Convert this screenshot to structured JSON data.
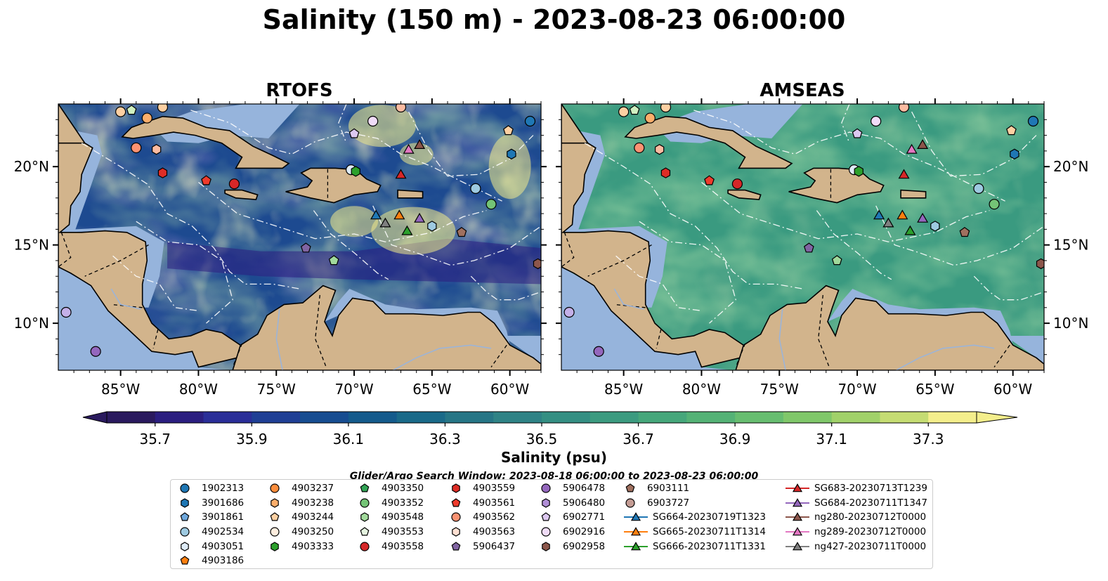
{
  "title": "Salinity (150 m) - 2023-08-23 06:00:00",
  "panels": [
    {
      "title": "RTOFS",
      "scheme": "rtofs"
    },
    {
      "title": "AMSEAS",
      "scheme": "amseas"
    }
  ],
  "map": {
    "lon_range": [
      -89,
      -58
    ],
    "lat_range": [
      7,
      24
    ],
    "lon_ticks": [
      "85°W",
      "80°W",
      "75°W",
      "70°W",
      "65°W",
      "60°W"
    ],
    "lat_ticks": [
      "20°N",
      "15°N",
      "10°N"
    ],
    "land_color": "#d2b48c",
    "shelf_color": "#96b4dc"
  },
  "colorbar": {
    "label": "Salinity (psu)",
    "range": [
      35.6,
      37.4
    ],
    "tick_values": [
      35.7,
      35.9,
      36.1,
      36.3,
      36.5,
      36.7,
      36.9,
      37.1,
      37.3
    ],
    "tick_labels": [
      "35.7",
      "35.9",
      "36.1",
      "36.3",
      "36.5",
      "36.7",
      "36.9",
      "37.1",
      "37.3"
    ],
    "levels": 18,
    "extend": "both"
  },
  "search_window": "Glider/Argo Search Window: 2023-08-18 06:00:00 to 2023-08-23 06:00:00",
  "legend_columns": [
    [
      {
        "label": "1902313",
        "marker": "circle",
        "color": "#1f77b4"
      },
      {
        "label": "3901686",
        "marker": "hexagon",
        "color": "#1f77b4"
      },
      {
        "label": "3901861",
        "marker": "pentagon",
        "color": "#6fa8dc"
      },
      {
        "label": "4902534",
        "marker": "circle",
        "color": "#9ecae1"
      },
      {
        "label": "4903051",
        "marker": "hexagon",
        "color": "#deebf7"
      },
      {
        "label": "4903186",
        "marker": "pentagon",
        "color": "#ff7f0e"
      }
    ],
    [
      {
        "label": "4903237",
        "marker": "circle",
        "color": "#fd8d3c"
      },
      {
        "label": "4903238",
        "marker": "hexagon",
        "color": "#fdae6b"
      },
      {
        "label": "4903244",
        "marker": "pentagon",
        "color": "#fdd0a2"
      },
      {
        "label": "4903250",
        "marker": "circle",
        "color": "#feedde"
      },
      {
        "label": "4903333",
        "marker": "hexagon",
        "color": "#2ca02c"
      }
    ],
    [
      {
        "label": "4903350",
        "marker": "pentagon",
        "color": "#31a354"
      },
      {
        "label": "4903352",
        "marker": "circle",
        "color": "#74c476"
      },
      {
        "label": "4903548",
        "marker": "hexagon",
        "color": "#a1d99b"
      },
      {
        "label": "4903553",
        "marker": "pentagon",
        "color": "#e5f5e0"
      },
      {
        "label": "4903558",
        "marker": "circle",
        "color": "#d62728"
      }
    ],
    [
      {
        "label": "4903559",
        "marker": "hexagon",
        "color": "#de2d26"
      },
      {
        "label": "4903561",
        "marker": "pentagon",
        "color": "#ef3b2c"
      },
      {
        "label": "4903562",
        "marker": "circle",
        "color": "#fc9272"
      },
      {
        "label": "4903563",
        "marker": "hexagon",
        "color": "#fee0d2"
      },
      {
        "label": "5906437",
        "marker": "pentagon",
        "color": "#8064a2"
      }
    ],
    [
      {
        "label": "5906478",
        "marker": "circle",
        "color": "#9467bd"
      },
      {
        "label": "5906480",
        "marker": "hexagon",
        "color": "#b08ed6"
      },
      {
        "label": "6902771",
        "marker": "pentagon",
        "color": "#dcc8f0"
      },
      {
        "label": "6902916",
        "marker": "circle",
        "color": "#f0dcf8"
      },
      {
        "label": "6902958",
        "marker": "hexagon",
        "color": "#8c564b"
      }
    ],
    [
      {
        "label": "6903111",
        "marker": "pentagon",
        "color": "#a0705f"
      },
      {
        "label": "6903727",
        "marker": "circle",
        "color": "#c49c94"
      },
      {
        "label": "SG664-20230719T1323",
        "marker": "triangle",
        "color": "#1f77b4",
        "line": true
      },
      {
        "label": "SG665-20230711T1314",
        "marker": "triangle",
        "color": "#ff7f0e",
        "line": true
      },
      {
        "label": "SG666-20230711T1331",
        "marker": "triangle",
        "color": "#2ca02c",
        "line": true
      }
    ],
    [
      {
        "label": "SG683-20230713T1239",
        "marker": "triangle",
        "color": "#d62728",
        "line": true
      },
      {
        "label": "SG684-20230711T1347",
        "marker": "triangle",
        "color": "#9467bd",
        "line": true
      },
      {
        "label": "ng280-20230712T0000",
        "marker": "triangle",
        "color": "#8c564b",
        "line": true
      },
      {
        "label": "ng289-20230712T0000",
        "marker": "triangle",
        "color": "#e377c2",
        "line": true
      },
      {
        "label": "ng427-20230711T0000",
        "marker": "triangle",
        "color": "#7f7f7f",
        "line": true
      }
    ]
  ],
  "observations": [
    {
      "lon": -85.0,
      "lat": 23.5,
      "marker": "circle",
      "color": "#fdd0a2"
    },
    {
      "lon": -84.3,
      "lat": 23.6,
      "marker": "pentagon",
      "color": "#d0f0c0"
    },
    {
      "lon": -83.3,
      "lat": 23.1,
      "marker": "circle",
      "color": "#fdae6b"
    },
    {
      "lon": -82.3,
      "lat": 23.8,
      "marker": "circle",
      "color": "#fdd0a2"
    },
    {
      "lon": -84.0,
      "lat": 21.2,
      "marker": "circle",
      "color": "#fc9272"
    },
    {
      "lon": -82.7,
      "lat": 21.1,
      "marker": "hexagon",
      "color": "#fcbba1"
    },
    {
      "lon": -82.3,
      "lat": 19.6,
      "marker": "hexagon",
      "color": "#de2d26"
    },
    {
      "lon": -79.5,
      "lat": 19.1,
      "marker": "pentagon",
      "color": "#ef3b2c"
    },
    {
      "lon": -77.7,
      "lat": 18.9,
      "marker": "circle",
      "color": "#d62728"
    },
    {
      "lon": -70.2,
      "lat": 19.8,
      "marker": "circle",
      "color": "#deebf7"
    },
    {
      "lon": -69.9,
      "lat": 19.7,
      "marker": "hexagon",
      "color": "#2ca02c"
    },
    {
      "lon": -70.0,
      "lat": 22.1,
      "marker": "pentagon",
      "color": "#dcc8f0"
    },
    {
      "lon": -68.8,
      "lat": 22.9,
      "marker": "circle",
      "color": "#f0dcf8"
    },
    {
      "lon": -67.0,
      "lat": 23.8,
      "marker": "circle",
      "color": "#fcbba1"
    },
    {
      "lon": -66.5,
      "lat": 21.1,
      "marker": "triangle",
      "color": "#e377c2"
    },
    {
      "lon": -65.8,
      "lat": 21.4,
      "marker": "triangle",
      "color": "#8c564b"
    },
    {
      "lon": -67.0,
      "lat": 19.5,
      "marker": "triangle",
      "color": "#d62728"
    },
    {
      "lon": -68.6,
      "lat": 16.9,
      "marker": "triangle",
      "color": "#1f77b4"
    },
    {
      "lon": -67.1,
      "lat": 16.9,
      "marker": "triangle",
      "color": "#ff7f0e"
    },
    {
      "lon": -68.0,
      "lat": 16.4,
      "marker": "triangle",
      "color": "#7f7f7f"
    },
    {
      "lon": -66.6,
      "lat": 15.9,
      "marker": "triangle",
      "color": "#2ca02c"
    },
    {
      "lon": -65.8,
      "lat": 16.7,
      "marker": "triangle",
      "color": "#9467bd"
    },
    {
      "lon": -65.0,
      "lat": 16.2,
      "marker": "hexagon",
      "color": "#9ecae1"
    },
    {
      "lon": -62.2,
      "lat": 18.6,
      "marker": "circle",
      "color": "#9ecae1"
    },
    {
      "lon": -61.2,
      "lat": 17.6,
      "marker": "circle",
      "color": "#74c476"
    },
    {
      "lon": -60.1,
      "lat": 22.3,
      "marker": "pentagon",
      "color": "#fdd0a2"
    },
    {
      "lon": -58.7,
      "lat": 22.9,
      "marker": "circle",
      "color": "#1f77b4"
    },
    {
      "lon": -59.9,
      "lat": 20.8,
      "marker": "hexagon",
      "color": "#1f77b4"
    },
    {
      "lon": -63.1,
      "lat": 15.8,
      "marker": "pentagon",
      "color": "#a0705f"
    },
    {
      "lon": -58.2,
      "lat": 13.8,
      "marker": "hexagon",
      "color": "#8c564b"
    },
    {
      "lon": -73.1,
      "lat": 14.8,
      "marker": "pentagon",
      "color": "#8064a2"
    },
    {
      "lon": -71.3,
      "lat": 14.0,
      "marker": "pentagon",
      "color": "#a1d99b"
    },
    {
      "lon": -88.5,
      "lat": 10.7,
      "marker": "circle",
      "color": "#c4b0e8"
    },
    {
      "lon": -86.6,
      "lat": 8.2,
      "marker": "circle",
      "color": "#9467bd"
    }
  ]
}
